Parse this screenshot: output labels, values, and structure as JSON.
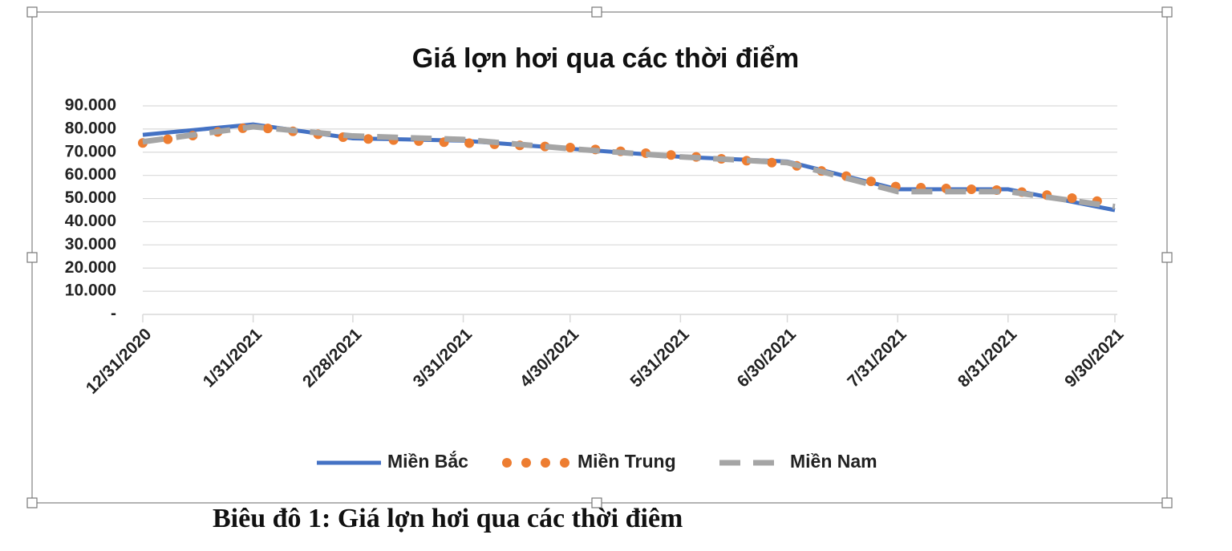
{
  "chart_data": {
    "type": "line",
    "title": "Giá lợn hơi qua các thời điểm",
    "caption": "Biêu đô 1: Giá lợn hơi qua các thời điêm",
    "x": [
      "12/31/2020",
      "1/31/2021",
      "2/28/2021",
      "3/31/2021",
      "4/30/2021",
      "5/31/2021",
      "6/30/2021",
      "7/31/2021",
      "8/31/2021",
      "9/30/2021"
    ],
    "series": [
      {
        "name": "Miền Bắc",
        "color": "#4472c4",
        "style": "solid",
        "values": [
          77500,
          82000,
          76000,
          75000,
          71500,
          68000,
          66000,
          54000,
          54000,
          45000
        ]
      },
      {
        "name": "Miền Trung",
        "color": "#ed7d31",
        "style": "dotted",
        "values": [
          74000,
          81000,
          76000,
          74000,
          72000,
          68500,
          65000,
          55000,
          53500,
          48000
        ]
      },
      {
        "name": "Miền Nam",
        "color": "#a5a5a5",
        "style": "dashed",
        "values": [
          74500,
          81000,
          77000,
          75500,
          71500,
          68000,
          65500,
          53000,
          53000,
          46500
        ]
      }
    ],
    "ylim": [
      0,
      90000
    ],
    "yticks": [
      {
        "value": 0,
        "label": "-"
      },
      {
        "value": 10000,
        "label": "10.000"
      },
      {
        "value": 20000,
        "label": "20.000"
      },
      {
        "value": 30000,
        "label": "30.000"
      },
      {
        "value": 40000,
        "label": "40.000"
      },
      {
        "value": 50000,
        "label": "50.000"
      },
      {
        "value": 60000,
        "label": "60.000"
      },
      {
        "value": 70000,
        "label": "70.000"
      },
      {
        "value": 80000,
        "label": "80.000"
      },
      {
        "value": 90000,
        "label": "90.000"
      }
    ],
    "grid": true,
    "legend": "bottom"
  }
}
